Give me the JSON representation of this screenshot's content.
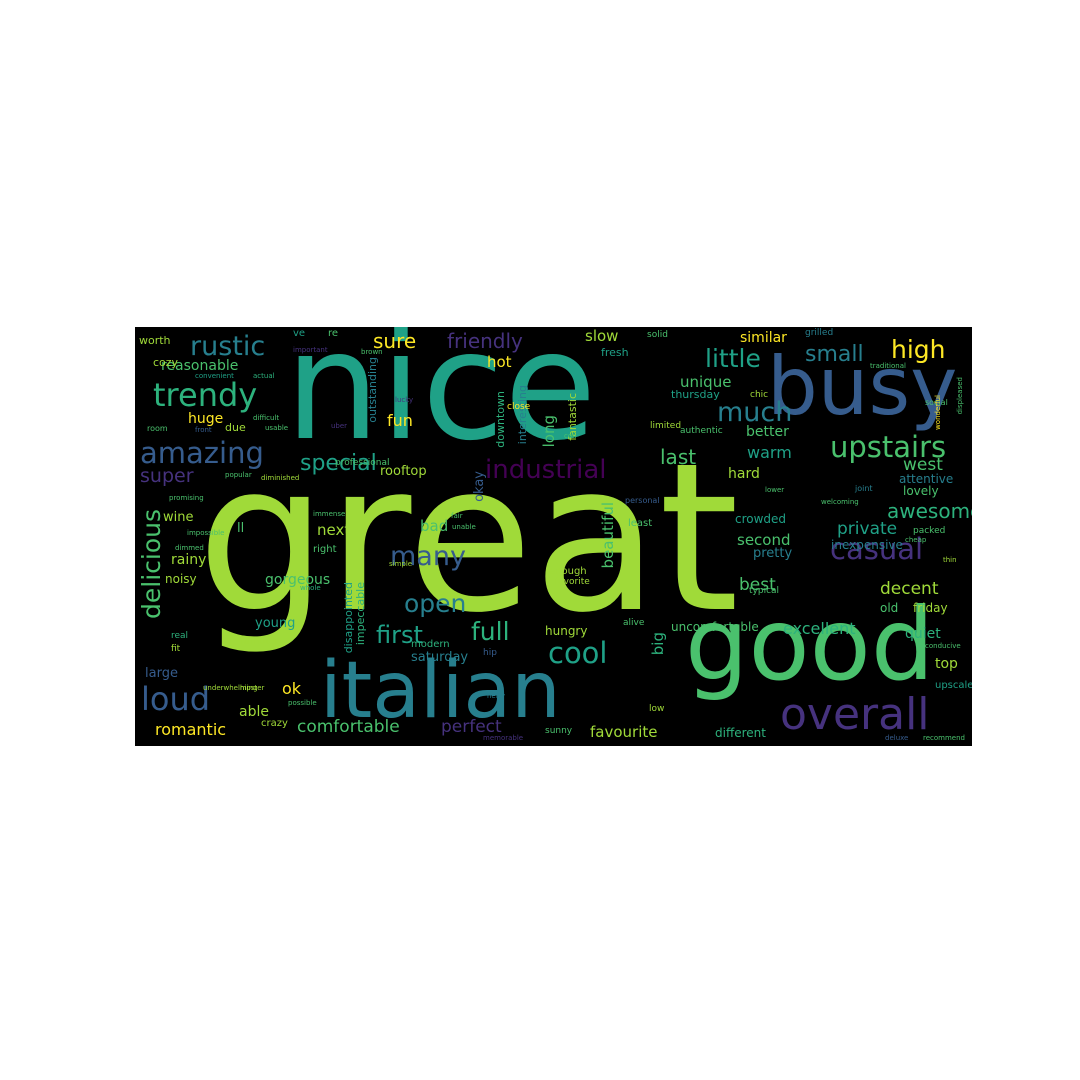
{
  "words": [
    {
      "text": "great",
      "weight": 100,
      "color": "#a0da39"
    },
    {
      "text": "nice",
      "weight": 70,
      "color": "#1fa187"
    },
    {
      "text": "good",
      "weight": 45,
      "color": "#4ac16d"
    },
    {
      "text": "italian",
      "weight": 42,
      "color": "#277f8e"
    },
    {
      "text": "busy",
      "weight": 38,
      "color": "#365c8d"
    },
    {
      "text": "overall",
      "weight": 25,
      "color": "#46327e"
    },
    {
      "text": "trendy",
      "weight": 18,
      "color": "#2db27d"
    },
    {
      "text": "rustic",
      "weight": 16,
      "color": "#277f8e"
    },
    {
      "text": "amazing",
      "weight": 17,
      "color": "#365c8d"
    },
    {
      "text": "upstairs",
      "weight": 16,
      "color": "#4ac16d"
    },
    {
      "text": "casual",
      "weight": 16,
      "color": "#46327e"
    },
    {
      "text": "industrial",
      "weight": 14,
      "color": "#440154"
    },
    {
      "text": "delicious",
      "weight": 14,
      "color": "#4ac16d"
    },
    {
      "text": "loud",
      "weight": 18,
      "color": "#365c8d"
    },
    {
      "text": "cool",
      "weight": 16,
      "color": "#1fa187"
    },
    {
      "text": "many",
      "weight": 15,
      "color": "#365c8d"
    },
    {
      "text": "much",
      "weight": 15,
      "color": "#277f8e"
    },
    {
      "text": "little",
      "weight": 13,
      "color": "#1fa187"
    },
    {
      "text": "small",
      "weight": 12,
      "color": "#277f8e"
    },
    {
      "text": "high",
      "weight": 13,
      "color": "#fde725"
    },
    {
      "text": "full",
      "weight": 14,
      "color": "#2db27d"
    },
    {
      "text": "open",
      "weight": 14,
      "color": "#277f8e"
    },
    {
      "text": "first",
      "weight": 13,
      "color": "#1fa187"
    },
    {
      "text": "special",
      "weight": 12,
      "color": "#1fa187"
    },
    {
      "text": "super",
      "weight": 11,
      "color": "#46327e"
    },
    {
      "text": "awesome",
      "weight": 11,
      "color": "#2db27d"
    },
    {
      "text": "sure",
      "weight": 11,
      "color": "#fde725"
    },
    {
      "text": "friendly",
      "weight": 11,
      "color": "#46327e"
    },
    {
      "text": "fun",
      "weight": 9,
      "color": "#fde725"
    },
    {
      "text": "last",
      "weight": 11,
      "color": "#4ac16d"
    },
    {
      "text": "warm",
      "weight": 9,
      "color": "#1fa187"
    },
    {
      "text": "west",
      "weight": 9,
      "color": "#4ac16d"
    },
    {
      "text": "private",
      "weight": 9,
      "color": "#1fa187"
    },
    {
      "text": "decent",
      "weight": 9,
      "color": "#a0da39"
    },
    {
      "text": "best",
      "weight": 9,
      "color": "#4ac16d"
    },
    {
      "text": "excellent",
      "weight": 9,
      "color": "#2db27d"
    },
    {
      "text": "beautiful",
      "weight": 8,
      "color": "#4ac16d"
    },
    {
      "text": "comfortable",
      "weight": 9,
      "color": "#4ac16d"
    },
    {
      "text": "favourite",
      "weight": 8,
      "color": "#a0da39"
    },
    {
      "text": "perfect",
      "weight": 9,
      "color": "#46327e"
    },
    {
      "text": "romantic",
      "weight": 9,
      "color": "#fde725"
    },
    {
      "text": "ok",
      "weight": 9,
      "color": "#fde725"
    },
    {
      "text": "able",
      "weight": 7,
      "color": "#a0da39"
    },
    {
      "text": "big",
      "weight": 8,
      "color": "#2db27d"
    },
    {
      "text": "hot",
      "weight": 8,
      "color": "#fde725"
    },
    {
      "text": "long",
      "weight": 8,
      "color": "#4ac16d"
    },
    {
      "text": "slow",
      "weight": 8,
      "color": "#a0da39"
    },
    {
      "text": "similar",
      "weight": 7,
      "color": "#fde725"
    },
    {
      "text": "unique",
      "weight": 8,
      "color": "#4ac16d"
    },
    {
      "text": "better",
      "weight": 7,
      "color": "#4ac16d"
    },
    {
      "text": "hard",
      "weight": 7,
      "color": "#a0da39"
    },
    {
      "text": "second",
      "weight": 8,
      "color": "#4ac16d"
    },
    {
      "text": "pretty",
      "weight": 7,
      "color": "#277f8e"
    },
    {
      "text": "huge",
      "weight": 7,
      "color": "#fde725"
    },
    {
      "text": "reasonable",
      "weight": 7,
      "color": "#4ac16d"
    },
    {
      "text": "wine",
      "weight": 7,
      "color": "#a0da39"
    },
    {
      "text": "gorgeous",
      "weight": 7,
      "color": "#4ac16d"
    },
    {
      "text": "noisy",
      "weight": 6,
      "color": "#a0da39"
    },
    {
      "text": "rainy",
      "weight": 7,
      "color": "#a0da39"
    },
    {
      "text": "large",
      "weight": 7,
      "color": "#365c8d"
    },
    {
      "text": "young",
      "weight": 7,
      "color": "#1fa187"
    },
    {
      "text": "next",
      "weight": 8,
      "color": "#a0da39"
    },
    {
      "text": "bad",
      "weight": 8,
      "color": "#4ac16d"
    },
    {
      "text": "hungry",
      "weight": 6,
      "color": "#a0da39"
    },
    {
      "text": "saturday",
      "weight": 7,
      "color": "#277f8e"
    },
    {
      "text": "okay",
      "weight": 7,
      "color": "#365c8d"
    },
    {
      "text": "quiet",
      "weight": 7,
      "color": "#2db27d"
    },
    {
      "text": "top",
      "weight": 7,
      "color": "#a0da39"
    },
    {
      "text": "friday",
      "weight": 6,
      "color": "#a0da39"
    },
    {
      "text": "old",
      "weight": 6,
      "color": "#4ac16d"
    },
    {
      "text": "lovely",
      "weight": 6,
      "color": "#4ac16d"
    },
    {
      "text": "attentive",
      "weight": 6,
      "color": "#277f8e"
    },
    {
      "text": "crowded",
      "weight": 6,
      "color": "#1fa187"
    },
    {
      "text": "inexpensive",
      "weight": 6,
      "color": "#277f8e"
    },
    {
      "text": "uncomfortable",
      "weight": 6,
      "color": "#4ac16d"
    },
    {
      "text": "different",
      "weight": 5,
      "color": "#2db27d"
    },
    {
      "text": "upscale",
      "weight": 5,
      "color": "#1fa187"
    },
    {
      "text": "thursday",
      "weight": 5,
      "color": "#1fa187"
    },
    {
      "text": "downtown",
      "weight": 5,
      "color": "#2db27d"
    },
    {
      "text": "rooftop",
      "weight": 6,
      "color": "#a0da39"
    },
    {
      "text": "fresh",
      "weight": 5,
      "color": "#1fa187"
    },
    {
      "text": "fantastic",
      "weight": 5,
      "color": "#a0da39"
    },
    {
      "text": "interesting",
      "weight": 5,
      "color": "#277f8e"
    },
    {
      "text": "outstanding",
      "weight": 5,
      "color": "#277f8e"
    },
    {
      "text": "disappointed",
      "weight": 5,
      "color": "#1fa187"
    },
    {
      "text": "impeccable",
      "weight": 5,
      "color": "#2db27d"
    },
    {
      "text": "cozy",
      "weight": 5,
      "color": "#a0da39"
    },
    {
      "text": "worth",
      "weight": 5,
      "color": "#a0da39"
    },
    {
      "text": "due",
      "weight": 5,
      "color": "#a0da39"
    },
    {
      "text": "ll",
      "weight": 6,
      "color": "#4ac16d"
    },
    {
      "text": "ve",
      "weight": 5,
      "color": "#1fa187"
    },
    {
      "text": "re",
      "weight": 5,
      "color": "#4ac16d"
    },
    {
      "text": "crazy",
      "weight": 5,
      "color": "#a0da39"
    },
    {
      "text": "real",
      "weight": 4,
      "color": "#2db27d"
    },
    {
      "text": "fit",
      "weight": 4,
      "color": "#a0da39"
    },
    {
      "text": "famous",
      "weight": 4,
      "color": "#a0da39"
    },
    {
      "text": "solid",
      "weight": 4,
      "color": "#4ac16d"
    },
    {
      "text": "grilled",
      "weight": 4,
      "color": "#277f8e"
    },
    {
      "text": "chic",
      "weight": 4,
      "color": "#a0da39"
    },
    {
      "text": "authentic",
      "weight": 4,
      "color": "#4ac16d"
    },
    {
      "text": "limited",
      "weight": 4,
      "color": "#a0da39"
    },
    {
      "text": "enough",
      "weight": 5,
      "color": "#a0da39"
    },
    {
      "text": "favorite",
      "weight": 4,
      "color": "#a0da39"
    },
    {
      "text": "modern",
      "weight": 5,
      "color": "#2db27d"
    },
    {
      "text": "right",
      "weight": 5,
      "color": "#4ac16d"
    },
    {
      "text": "least",
      "weight": 5,
      "color": "#4ac16d"
    },
    {
      "text": "alive",
      "weight": 4,
      "color": "#4ac16d"
    },
    {
      "text": "hip",
      "weight": 4,
      "color": "#365c8d"
    },
    {
      "text": "low",
      "weight": 4,
      "color": "#a0da39"
    },
    {
      "text": "sunny",
      "weight": 4,
      "color": "#4ac16d"
    },
    {
      "text": "packed",
      "weight": 4,
      "color": "#4ac16d"
    },
    {
      "text": "typical",
      "weight": 4,
      "color": "#4ac16d"
    },
    {
      "text": "professional",
      "weight": 4,
      "color": "#4ac16d"
    },
    {
      "text": "close",
      "weight": 4,
      "color": "#fde725"
    },
    {
      "text": "con",
      "weight": 3,
      "color": "#4ac16d"
    },
    {
      "text": "social",
      "weight": 3,
      "color": "#4ac16d"
    },
    {
      "text": "personal",
      "weight": 3,
      "color": "#365c8d"
    },
    {
      "text": "lucky",
      "weight": 3,
      "color": "#46327e"
    },
    {
      "text": "important",
      "weight": 3,
      "color": "#46327e"
    },
    {
      "text": "uber",
      "weight": 3,
      "color": "#46327e"
    },
    {
      "text": "popular",
      "weight": 3,
      "color": "#4ac16d"
    },
    {
      "text": "unable",
      "weight": 3,
      "color": "#4ac16d"
    },
    {
      "text": "simple",
      "weight": 3,
      "color": "#a0da39"
    },
    {
      "text": "whole",
      "weight": 3,
      "color": "#2db27d"
    },
    {
      "text": "promising",
      "weight": 3,
      "color": "#4ac16d"
    },
    {
      "text": "dimmed",
      "weight": 3,
      "color": "#4ac16d"
    },
    {
      "text": "impossible",
      "weight": 3,
      "color": "#4ac16d"
    },
    {
      "text": "hipster",
      "weight": 3,
      "color": "#a0da39"
    },
    {
      "text": "possible",
      "weight": 3,
      "color": "#4ac16d"
    },
    {
      "text": "underwhelming",
      "weight": 3,
      "color": "#a0da39"
    },
    {
      "text": "convenient",
      "weight": 3,
      "color": "#1fa187"
    },
    {
      "text": "actual",
      "weight": 3,
      "color": "#2db27d"
    },
    {
      "text": "brown",
      "weight": 3,
      "color": "#4ac16d"
    },
    {
      "text": "difficult",
      "weight": 3,
      "color": "#4ac16d"
    },
    {
      "text": "usable",
      "weight": 3,
      "color": "#4ac16d"
    },
    {
      "text": "front",
      "weight": 3,
      "color": "#365c8d"
    },
    {
      "text": "room",
      "weight": 3,
      "color": "#4ac16d"
    },
    {
      "text": "diminished",
      "weight": 3,
      "color": "#a0da39"
    },
    {
      "text": "immense",
      "weight": 3,
      "color": "#4ac16d"
    },
    {
      "text": "fair",
      "weight": 3,
      "color": "#4ac16d"
    },
    {
      "text": "cheap",
      "weight": 3,
      "color": "#4ac16d"
    },
    {
      "text": "thin",
      "weight": 3,
      "color": "#a0da39"
    },
    {
      "text": "conducive",
      "weight": 3,
      "color": "#4ac16d"
    },
    {
      "text": "deluxe",
      "weight": 3,
      "color": "#365c8d"
    },
    {
      "text": "recommend",
      "weight": 3,
      "color": "#4ac16d"
    },
    {
      "text": "memorable",
      "weight": 3,
      "color": "#46327e"
    },
    {
      "text": "hefty",
      "weight": 3,
      "color": "#277f8e"
    },
    {
      "text": "welcoming",
      "weight": 3,
      "color": "#4ac16d"
    },
    {
      "text": "lower",
      "weight": 3,
      "color": "#4ac16d"
    },
    {
      "text": "joint",
      "weight": 3,
      "color": "#277f8e"
    },
    {
      "text": "traditional",
      "weight": 3,
      "color": "#4ac16d"
    },
    {
      "text": "wonderful",
      "weight": 3,
      "color": "#fde725"
    },
    {
      "text": "displeased",
      "weight": 3,
      "color": "#4ac16d"
    }
  ]
}
